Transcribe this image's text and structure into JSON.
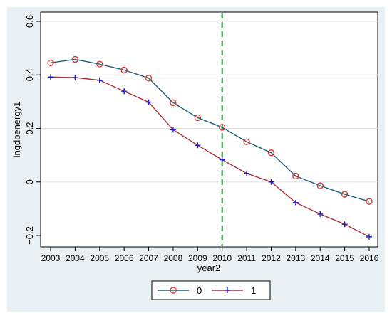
{
  "chart_data": {
    "type": "line",
    "xlabel": "year2",
    "ylabel": "lngdpenergy1",
    "x": [
      2003,
      2004,
      2005,
      2006,
      2007,
      2008,
      2009,
      2010,
      2011,
      2012,
      2013,
      2014,
      2015,
      2016
    ],
    "xlim": [
      2003,
      2016
    ],
    "ylim": [
      -0.2,
      0.6
    ],
    "y_ticks": [
      -0.2,
      0,
      0.2,
      0.4,
      0.6
    ],
    "y_tick_labels": [
      "−0.2",
      "0",
      "0.2",
      "0.4",
      "0.6"
    ],
    "x_tick_labels": [
      "2003",
      "2004",
      "2005",
      "2006",
      "2007",
      "2008",
      "2009",
      "2010",
      "2011",
      "2012",
      "2013",
      "2014",
      "2015",
      "2016"
    ],
    "grid": true,
    "reference_line": {
      "x": 2010,
      "style": "dashed",
      "color": "#1a8c2e"
    },
    "legend_position": "bottom",
    "series": [
      {
        "name": "0",
        "marker": "circle",
        "line_color": "#1f5c7a",
        "marker_color": "#d23a2c",
        "values": [
          0.445,
          0.458,
          0.44,
          0.418,
          0.388,
          0.296,
          0.24,
          0.204,
          0.15,
          0.109,
          0.022,
          -0.014,
          -0.046,
          -0.073
        ]
      },
      {
        "name": "1",
        "marker": "plus",
        "line_color": "#a8323a",
        "marker_color": "#1c1ccc",
        "values": [
          0.392,
          0.39,
          0.38,
          0.339,
          0.298,
          0.195,
          0.137,
          0.083,
          0.032,
          0.0,
          -0.077,
          -0.12,
          -0.158,
          -0.205
        ]
      }
    ]
  }
}
